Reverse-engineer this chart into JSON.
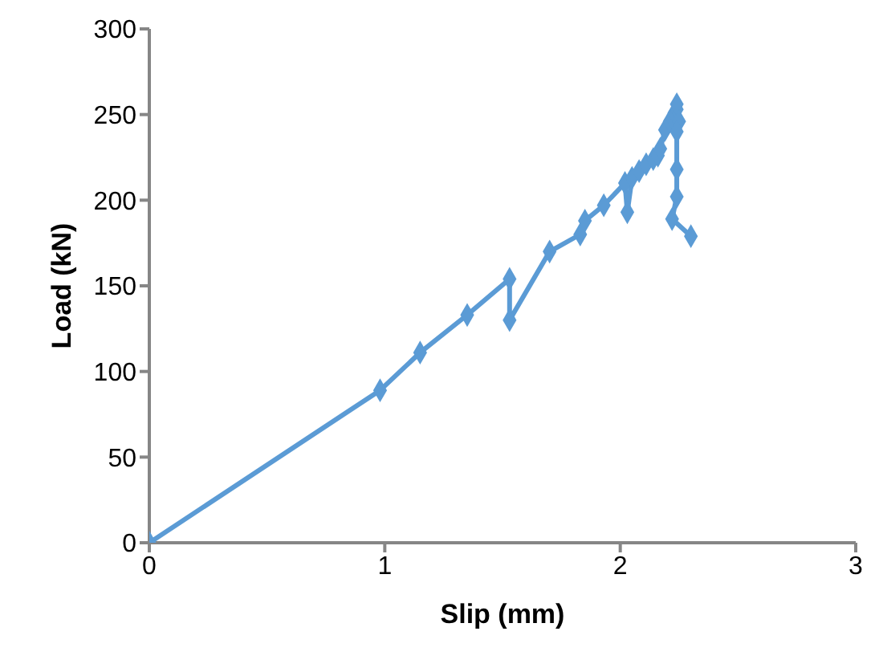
{
  "chart_data": {
    "type": "line",
    "xlabel": "Slip (mm)",
    "ylabel": "Load (kN)",
    "marker": "diamond",
    "line_style": "solid",
    "grid": false,
    "legend": false,
    "xlim": [
      0,
      3
    ],
    "xticks": [
      0,
      1,
      2,
      3
    ],
    "ylim": [
      0,
      300
    ],
    "yticks": [
      0,
      50,
      100,
      150,
      200,
      250,
      300
    ],
    "series": [
      {
        "color": "#5b9bd5",
        "x": [
          0,
          0.98,
          1.15,
          1.35,
          1.53,
          1.53,
          1.7,
          1.83,
          1.85,
          1.93,
          2.02,
          2.03,
          2.05,
          2.08,
          2.11,
          2.14,
          2.16,
          2.17,
          2.19,
          2.21,
          2.22,
          2.23,
          2.24,
          2.24,
          2.25,
          2.24,
          2.24,
          2.24,
          2.22,
          2.3
        ],
        "values": [
          0,
          89,
          111,
          133,
          154,
          130,
          170,
          180,
          188,
          197,
          210,
          193,
          213,
          217,
          221,
          224,
          226,
          230,
          241,
          246,
          248,
          251,
          253,
          256,
          246,
          240,
          218,
          202,
          189,
          179
        ]
      }
    ]
  }
}
